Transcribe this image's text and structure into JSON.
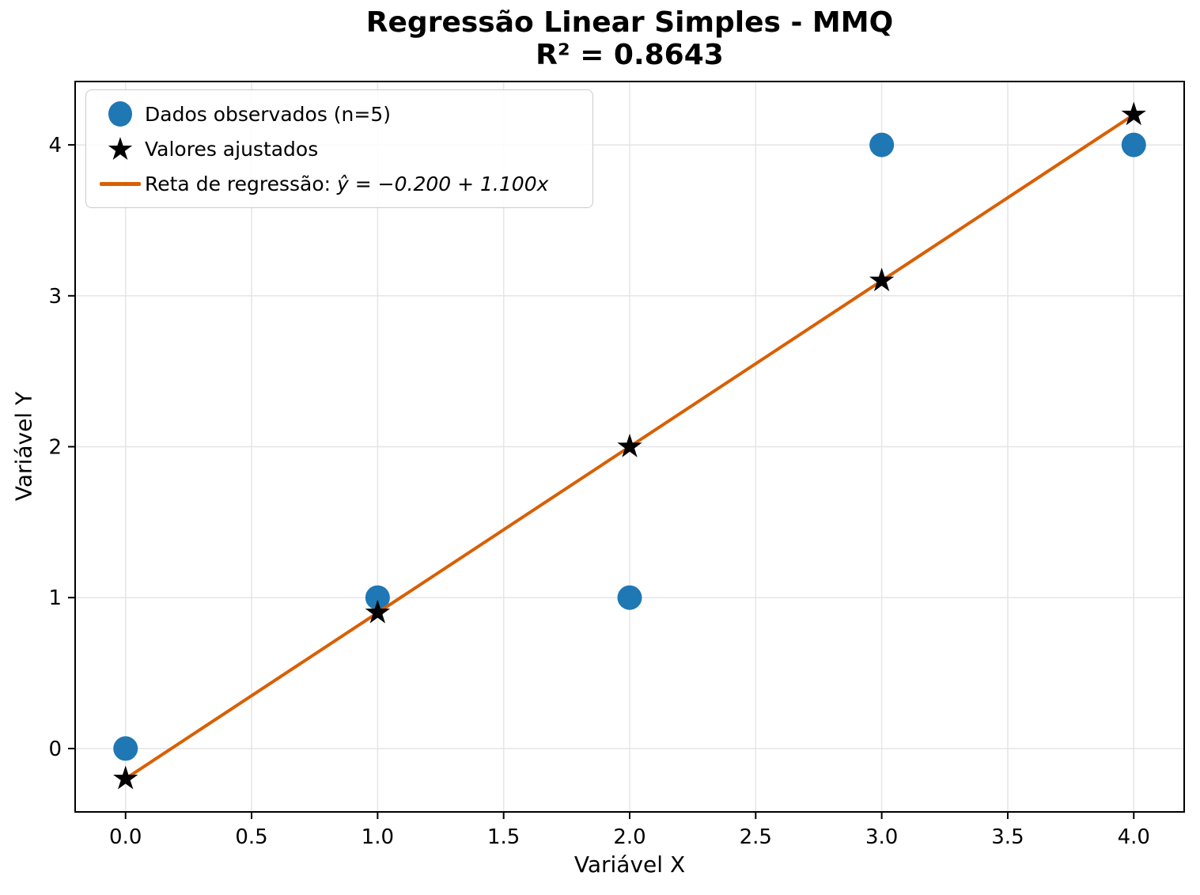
{
  "chart_data": {
    "type": "scatter",
    "title": "Regressão Linear Simples - MMQ",
    "subtitle": "R² = 0.8643",
    "xlabel": "Variável X",
    "ylabel": "Variável Y",
    "xlim": [
      -0.2,
      4.2
    ],
    "ylim": [
      -0.42,
      4.42
    ],
    "xticks": [
      0,
      0.5,
      1,
      1.5,
      2,
      2.5,
      3,
      3.5,
      4
    ],
    "xtick_labels": [
      "0.0",
      "0.5",
      "1.0",
      "1.5",
      "2.0",
      "2.5",
      "3.0",
      "3.5",
      "4.0"
    ],
    "yticks": [
      0,
      1,
      2,
      3,
      4
    ],
    "ytick_labels": [
      "0",
      "1",
      "2",
      "3",
      "4"
    ],
    "grid": true,
    "grid_color": "#e5e5e5",
    "series": [
      {
        "name": "Dados observados (n=5)",
        "kind": "scatter",
        "marker": "circle",
        "color": "#1f77b4",
        "z": 1,
        "x": [
          0,
          1,
          2,
          3,
          4
        ],
        "y": [
          0,
          1,
          1,
          4,
          4
        ]
      },
      {
        "name": "Valores ajustados",
        "kind": "scatter",
        "marker": "star",
        "color": "#000000",
        "z": 3,
        "x": [
          0,
          1,
          2,
          3,
          4
        ],
        "y": [
          -0.2,
          0.9,
          2.0,
          3.1,
          4.2
        ]
      },
      {
        "name": "Reta de regressão: ŷ = −0.200 + 1.100x",
        "kind": "line",
        "color": "#d95f02",
        "z": 2,
        "x": [
          0,
          4
        ],
        "y": [
          -0.2,
          4.2
        ]
      }
    ],
    "legend": {
      "position": "upper-left",
      "items": [
        {
          "marker": "circle",
          "color": "#1f77b4",
          "label": "Dados observados (n=5)"
        },
        {
          "marker": "star",
          "color": "#000000",
          "label": "Valores ajustados"
        },
        {
          "marker": "line",
          "color": "#d95f02",
          "label": "Reta de regressão: ",
          "formula": "ŷ = −0.200 + 1.100x"
        }
      ]
    },
    "regression": {
      "equation": "ŷ = −0.200 + 1.100x",
      "intercept": -0.2,
      "slope": 1.1,
      "r_squared": 0.8643,
      "n_points": 5
    }
  }
}
